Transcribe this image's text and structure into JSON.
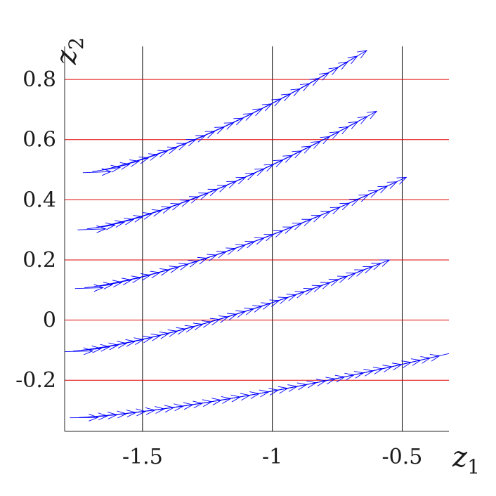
{
  "chart_data": {
    "type": "quiver",
    "title": "",
    "xlabel": {
      "var": "z",
      "sub": "1"
    },
    "ylabel": {
      "var": "z",
      "sub": "2"
    },
    "xlim": [
      -1.8,
      -0.32
    ],
    "ylim": [
      -0.37,
      0.91
    ],
    "xticks": [
      -1.5,
      -1,
      -0.5
    ],
    "xtick_labels": [
      "-1.5",
      "-1",
      "-0.5"
    ],
    "yticks": [
      -0.2,
      0,
      0.2,
      0.4,
      0.6,
      0.8
    ],
    "ytick_labels": [
      "-0.2",
      "0",
      "0.2",
      "0.4",
      "0.6",
      "0.8"
    ],
    "grid": {
      "vertical_color": "#000000",
      "horizontal_color": "#e00000"
    },
    "arrow_color": "#0000ff",
    "series": [
      {
        "x_start": -1.78,
        "x_end": -0.34,
        "y_start": -0.325,
        "y_end": -0.115,
        "count": 38
      },
      {
        "x_start": -1.8,
        "x_end": -0.58,
        "y_start": -0.105,
        "y_end": 0.19,
        "count": 36
      },
      {
        "x_start": -1.76,
        "x_end": -0.51,
        "y_start": 0.105,
        "y_end": 0.465,
        "count": 33
      },
      {
        "x_start": -1.75,
        "x_end": -0.63,
        "y_start": 0.3,
        "y_end": 0.68,
        "count": 30
      },
      {
        "x_start": -1.73,
        "x_end": -0.67,
        "y_start": 0.49,
        "y_end": 0.88,
        "count": 28
      }
    ]
  }
}
